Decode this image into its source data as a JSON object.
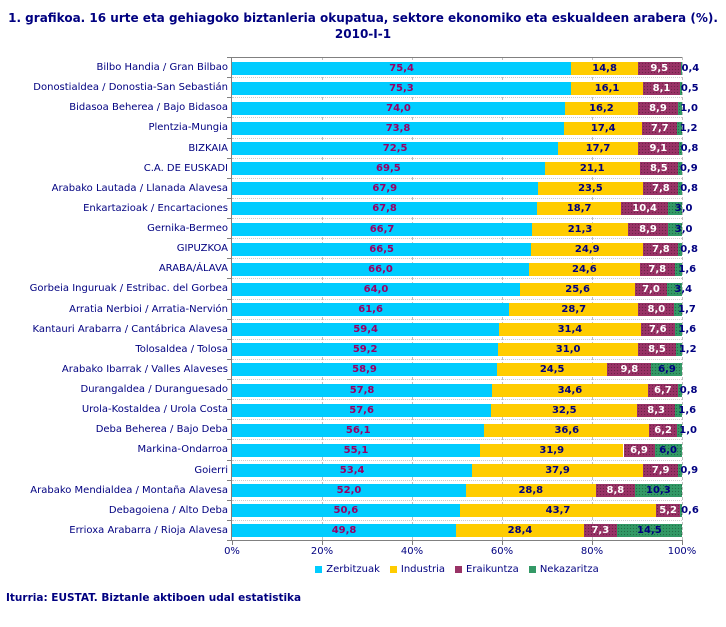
{
  "title": {
    "line1": "1. grafikoa. 16 urte eta gehiagoko biztanleria okupatua, sektore ekonomiko eta eskualdeen arabera (%).",
    "line2": "2010-I-1"
  },
  "footer": "Iturria: EUSTAT. Biztanle aktiboen udal estatistika",
  "colors": {
    "services": "#00CCFF",
    "industry": "#FFCC00",
    "construction": "#993366",
    "agriculture": "#339966",
    "text_navy": "#000080",
    "value_on_services": "#990066",
    "value_on_industry": "#000080",
    "value_on_construction": "#FFFFFF",
    "value_on_agriculture": "#000080",
    "grid": "#C0C0C0",
    "axis": "#808080"
  },
  "chart_data": {
    "type": "bar",
    "orientation": "horizontal",
    "stacked": true,
    "grid": "vertical-dashed",
    "xlim": [
      0,
      100
    ],
    "x_ticks": [
      "0%",
      "20%",
      "40%",
      "60%",
      "80%",
      "100%"
    ],
    "legend_position": "bottom",
    "decimal_separator": ",",
    "categories": [
      "Bilbo Handia / Gran Bilbao",
      "Donostialdea / Donostia-San Sebastián",
      "Bidasoa Beherea / Bajo Bidasoa",
      "Plentzia-Mungia",
      "BIZKAIA",
      "C.A. DE EUSKADI",
      "Arabako Lautada / Llanada Alavesa",
      "Enkartazioak / Encartaciones",
      "Gernika-Bermeo",
      "GIPUZKOA",
      "ARABA/ÁLAVA",
      "Gorbeia Inguruak / Estribac. del Gorbea",
      "Arratia Nerbioi / Arratia-Nervión",
      "Kantauri Arabarra / Cantábrica Alavesa",
      "Tolosaldea / Tolosa",
      "Arabako Ibarrak / Valles Alaveses",
      "Durangaldea / Duranguesado",
      "Urola-Kostaldea / Urola Costa",
      "Deba Beherea / Bajo Deba",
      "Markina-Ondarroa",
      "Goierri",
      "Arabako Mendialdea / Montaña Alavesa",
      "Debagoiena / Alto Deba",
      "Errioxa Arabarra / Rioja Alavesa"
    ],
    "series": [
      {
        "name": "Zerbitzuak",
        "color": "#00CCFF",
        "values": [
          75.4,
          75.3,
          74.0,
          73.8,
          72.5,
          69.5,
          67.9,
          67.8,
          66.7,
          66.5,
          66.0,
          64.0,
          61.6,
          59.4,
          59.2,
          58.9,
          57.8,
          57.6,
          56.1,
          55.1,
          53.4,
          52.0,
          50.6,
          49.8
        ]
      },
      {
        "name": "Industria",
        "color": "#FFCC00",
        "values": [
          14.8,
          16.1,
          16.2,
          17.4,
          17.7,
          21.1,
          23.5,
          18.7,
          21.3,
          24.9,
          24.6,
          25.6,
          28.7,
          31.4,
          31.0,
          24.5,
          34.6,
          32.5,
          36.6,
          31.9,
          37.9,
          28.8,
          43.7,
          28.4
        ]
      },
      {
        "name": "Eraikuntza",
        "color": "#993366",
        "values": [
          9.5,
          8.1,
          8.9,
          7.7,
          9.1,
          8.5,
          7.8,
          10.4,
          8.9,
          7.8,
          7.8,
          7.0,
          8.0,
          7.6,
          8.5,
          9.8,
          6.7,
          8.3,
          6.2,
          6.9,
          7.9,
          8.8,
          5.2,
          7.3
        ]
      },
      {
        "name": "Nekazaritza",
        "color": "#339966",
        "values": [
          0.4,
          0.5,
          1.0,
          1.2,
          0.8,
          0.9,
          0.8,
          3.0,
          3.0,
          0.8,
          1.6,
          3.4,
          1.7,
          1.6,
          1.2,
          6.9,
          0.8,
          1.6,
          1.0,
          6.0,
          0.9,
          10.3,
          0.6,
          14.5
        ]
      }
    ]
  }
}
